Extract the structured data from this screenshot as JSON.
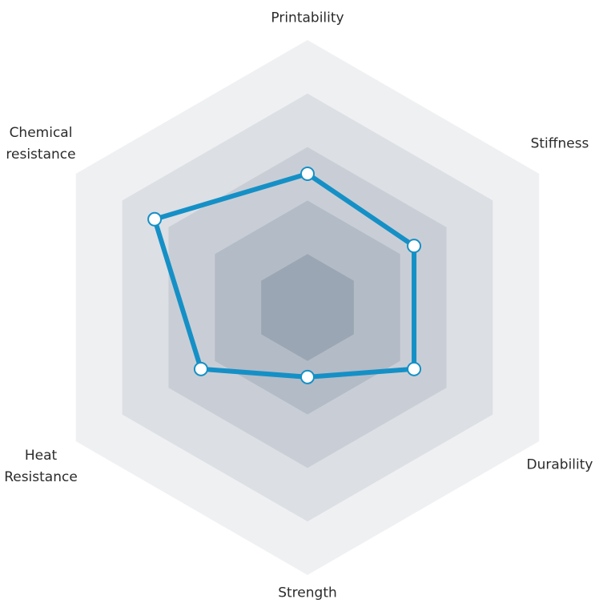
{
  "chart_data": {
    "type": "radar",
    "axes": [
      "Printability",
      "Stiffness",
      "Durability",
      "Strength",
      "Heat Resistance",
      "Chemical resistance"
    ],
    "axis_label_lines": [
      [
        "Printability"
      ],
      [
        "Stiffness"
      ],
      [
        "Durability"
      ],
      [
        "Strength"
      ],
      [
        "Heat",
        "Resistance"
      ],
      [
        "Chemical",
        "resistance"
      ]
    ],
    "levels": 5,
    "range": [
      0,
      5
    ],
    "values": [
      2.5,
      2.3,
      2.3,
      1.3,
      2.3,
      3.3
    ],
    "grid_colors": [
      "#eff0f2",
      "#dcdfe4",
      "#c9ced6",
      "#b3bbc6",
      "#9aa6b3"
    ],
    "series_color": "#1590c6",
    "marker_fill": "#ffffff"
  }
}
